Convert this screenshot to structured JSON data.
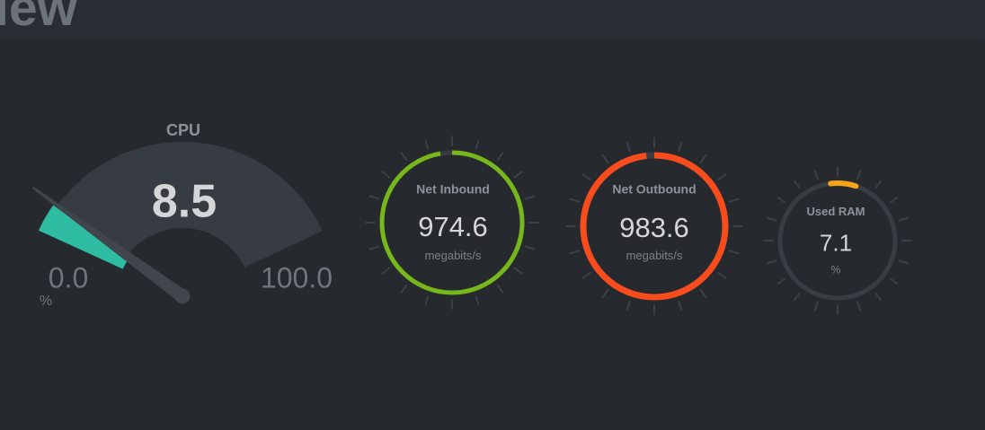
{
  "page": {
    "title_partial": "iew"
  },
  "theme": {
    "background": "#26292e",
    "header_background": "#2a2d33",
    "gauge_fan": "#373b42",
    "gauge_needle": "#41464d",
    "ring_background": "#383d44",
    "tick_color": "#3e434a",
    "title_text": "#6c727a",
    "label_text": "#8d939a",
    "unit_text": "#7d838a",
    "range_text": "#6f757c",
    "value_text": "#d4d6d8"
  },
  "chart_data": {
    "type": "gauge",
    "gauges": [
      {
        "id": "cpu",
        "style": "needle-gauge",
        "title": "CPU",
        "value": 8.5,
        "value_text": "8.5",
        "unit": "%",
        "min": 0,
        "min_text": "0.0",
        "max": 100,
        "max_text": "100.0",
        "fraction": 0.085,
        "color": "#2ebda3"
      },
      {
        "id": "net-inbound",
        "style": "ring-gauge",
        "title": "Net Inbound",
        "value": 974.6,
        "value_text": "974.6",
        "unit": "megabits/s",
        "fraction": 0.9746,
        "color": "#77b71c"
      },
      {
        "id": "net-outbound",
        "style": "ring-gauge",
        "title": "Net Outbound",
        "value": 983.6,
        "value_text": "983.6",
        "unit": "megabits/s",
        "fraction": 0.9836,
        "color": "#f94c1d"
      },
      {
        "id": "used-ram",
        "style": "ring-gauge",
        "title": "Used RAM",
        "value": 7.1,
        "value_text": "7.1",
        "unit": "%",
        "fraction": 0.071,
        "color": "#f7a318"
      }
    ]
  }
}
